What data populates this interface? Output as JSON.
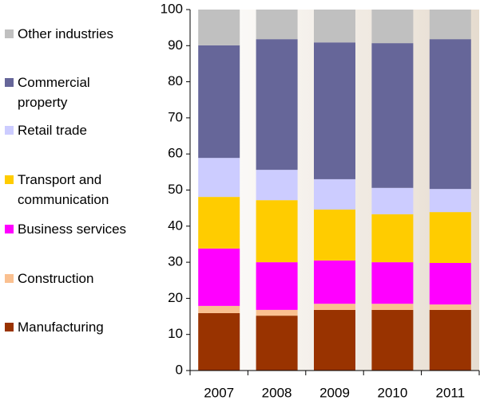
{
  "chart_data": {
    "type": "stacked_bar",
    "categories": [
      "2007",
      "2008",
      "2009",
      "2010",
      "2011"
    ],
    "series": [
      {
        "name": "Manufacturing",
        "color": "#993300",
        "values": [
          15.9,
          15.2,
          16.8,
          16.8,
          16.8
        ]
      },
      {
        "name": "Construction",
        "color": "#fac090",
        "values": [
          2.0,
          1.6,
          1.7,
          1.7,
          1.5
        ]
      },
      {
        "name": "Business services",
        "color": "#ff00ff",
        "values": [
          15.9,
          13.2,
          12.0,
          11.5,
          11.5
        ]
      },
      {
        "name": "Transport and communication",
        "color": "#ffcc00",
        "values": [
          14.3,
          17.2,
          14.1,
          13.3,
          14.1
        ]
      },
      {
        "name": "Retail trade",
        "color": "#ccccff",
        "values": [
          10.8,
          8.4,
          8.4,
          7.3,
          6.4
        ]
      },
      {
        "name": "Commercial property",
        "color": "#666699",
        "values": [
          31.2,
          36.2,
          37.9,
          40.1,
          41.5
        ]
      },
      {
        "name": "Other industries",
        "color": "#c0c0c0",
        "values": [
          9.9,
          8.2,
          9.1,
          9.3,
          8.2
        ]
      }
    ],
    "ylim": [
      0,
      100
    ],
    "yticks": [
      0,
      10,
      20,
      30,
      40,
      50,
      60,
      70,
      80,
      90,
      100
    ]
  }
}
